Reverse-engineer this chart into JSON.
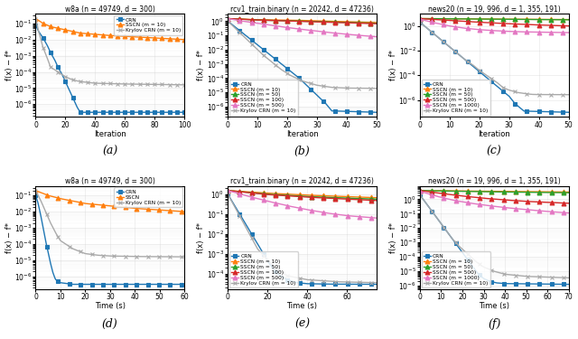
{
  "subplots": [
    {
      "title": "w8a (n = 49749, d = 300)",
      "xlabel": "Iteration",
      "ylabel": "f(x) − f*",
      "xlim": [
        0,
        100
      ],
      "label": "(a)",
      "legend_loc": "upper right",
      "series": [
        {
          "name": "CRN",
          "color": "#1f77b4",
          "marker": "s"
        },
        {
          "name": "SSCN (m = 10)",
          "color": "#ff7f0e",
          "marker": "^"
        },
        {
          "name": "Krylov CRN (m = 10)",
          "color": "#aaaaaa",
          "marker": "x"
        }
      ]
    },
    {
      "title": "rcv1_train.binary (n = 20242, d = 47236)",
      "xlabel": "Iteration",
      "ylabel": "f(x) − f*",
      "xlim": [
        0,
        50
      ],
      "label": "(b)",
      "legend_loc": "lower left",
      "series": [
        {
          "name": "CRN",
          "color": "#1f77b4",
          "marker": "s"
        },
        {
          "name": "SSCN (m = 10)",
          "color": "#ff7f0e",
          "marker": "^"
        },
        {
          "name": "SSCN (m = 50)",
          "color": "#2ca02c",
          "marker": "^"
        },
        {
          "name": "SSCN (m = 100)",
          "color": "#d62728",
          "marker": "^"
        },
        {
          "name": "SSCN (m = 500)",
          "color": "#e377c2",
          "marker": "^"
        },
        {
          "name": "Krylov CRN (m = 10)",
          "color": "#aaaaaa",
          "marker": "x"
        }
      ]
    },
    {
      "title": "news20 (n = 19, 996, d = 1, 355, 191)",
      "xlabel": "Iteration",
      "ylabel": "f(x) − f*",
      "xlim": [
        0,
        50
      ],
      "label": "(c)",
      "legend_loc": "lower left",
      "series": [
        {
          "name": "CRN",
          "color": "#1f77b4",
          "marker": "s"
        },
        {
          "name": "SSCN (m = 10)",
          "color": "#ff7f0e",
          "marker": "^"
        },
        {
          "name": "SSCN (m = 50)",
          "color": "#2ca02c",
          "marker": "^"
        },
        {
          "name": "SSCN (m = 500)",
          "color": "#d62728",
          "marker": "^"
        },
        {
          "name": "SSCN (m = 1000)",
          "color": "#e377c2",
          "marker": "^"
        },
        {
          "name": "Krylov CRN (m = 10)",
          "color": "#aaaaaa",
          "marker": "x"
        }
      ]
    },
    {
      "title": "w8a (n = 49749, d = 300)",
      "xlabel": "Time (s)",
      "ylabel": "f(x) − f*",
      "xlim": [
        0,
        60
      ],
      "label": "(d)",
      "legend_loc": "upper right",
      "series": [
        {
          "name": "CRN",
          "color": "#1f77b4",
          "marker": "s"
        },
        {
          "name": "SSCN",
          "color": "#ff7f0e",
          "marker": "^"
        },
        {
          "name": "Krylov CRN (m = 10)",
          "color": "#aaaaaa",
          "marker": "x"
        }
      ]
    },
    {
      "title": "rcv1_train.binary (n = 20242, d = 47236)",
      "xlabel": "Time (s)",
      "ylabel": "f(x) − f*",
      "xlim": [
        0,
        75
      ],
      "label": "(e)",
      "legend_loc": "lower left",
      "series": [
        {
          "name": "CRN",
          "color": "#1f77b4",
          "marker": "s"
        },
        {
          "name": "SSCN (m = 10)",
          "color": "#ff7f0e",
          "marker": "^"
        },
        {
          "name": "SSCN (m = 50)",
          "color": "#2ca02c",
          "marker": "^"
        },
        {
          "name": "SSCN (m = 100)",
          "color": "#d62728",
          "marker": "^"
        },
        {
          "name": "SSCN (m = 500)",
          "color": "#e377c2",
          "marker": "^"
        },
        {
          "name": "Krylov CRN (m = 10)",
          "color": "#aaaaaa",
          "marker": "x"
        }
      ]
    },
    {
      "title": "news20 (n = 19, 996, d = 1, 355, 191)",
      "xlabel": "Time (s)",
      "ylabel": "f(x) − f*",
      "xlim": [
        0,
        70
      ],
      "label": "(f)",
      "legend_loc": "lower left",
      "series": [
        {
          "name": "CRN",
          "color": "#1f77b4",
          "marker": "s"
        },
        {
          "name": "SSCN (m = 10)",
          "color": "#ff7f0e",
          "marker": "^"
        },
        {
          "name": "SSCN (m = 50)",
          "color": "#2ca02c",
          "marker": "^"
        },
        {
          "name": "SSCN (m = 500)",
          "color": "#d62728",
          "marker": "^"
        },
        {
          "name": "SSCN (m = 1000)",
          "color": "#e377c2",
          "marker": "^"
        },
        {
          "name": "Krylov CRN (m = 10)",
          "color": "#aaaaaa",
          "marker": "x"
        }
      ]
    }
  ],
  "figsize": [
    6.4,
    3.75
  ],
  "dpi": 100
}
